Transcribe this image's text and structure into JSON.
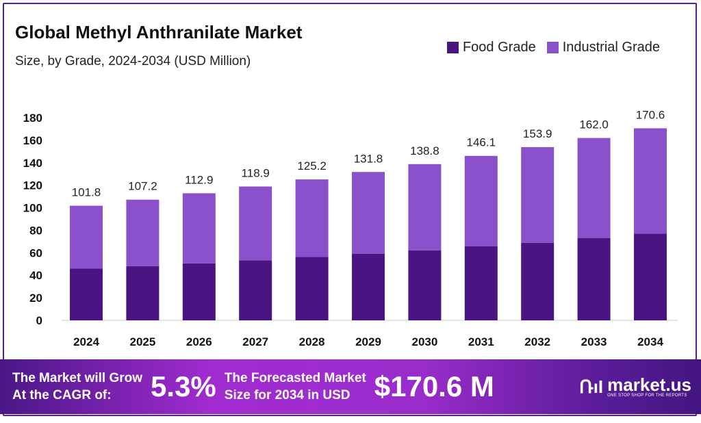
{
  "header": {
    "title": "Global Methyl Anthranilate Market",
    "subtitle": "Size, by Grade, 2024-2034 (USD Million)"
  },
  "chart_data": {
    "type": "bar",
    "stacked": true,
    "categories": [
      "2024",
      "2025",
      "2026",
      "2027",
      "2028",
      "2029",
      "2030",
      "2031",
      "2032",
      "2033",
      "2034"
    ],
    "series": [
      {
        "name": "Food Grade",
        "color": "#4a1583",
        "values": [
          45.9,
          48.2,
          50.6,
          53.3,
          56.3,
          59.2,
          62.2,
          65.9,
          68.9,
          73.2,
          76.9
        ]
      },
      {
        "name": "Industrial Grade",
        "color": "#8b50cc",
        "values": [
          55.9,
          59.0,
          62.3,
          65.6,
          68.9,
          72.6,
          76.6,
          80.2,
          85.0,
          88.8,
          93.7
        ]
      }
    ],
    "totals": [
      "101.8",
      "107.2",
      "112.9",
      "118.9",
      "125.2",
      "131.8",
      "138.8",
      "146.1",
      "153.9",
      "162.0",
      "170.6"
    ],
    "yticks": [
      "0",
      "20",
      "40",
      "60",
      "80",
      "100",
      "120",
      "140",
      "160",
      "180"
    ],
    "ylim": [
      0,
      180
    ],
    "grid": false,
    "legend": "top-right"
  },
  "banner": {
    "cagr_label_1": "The Market will Grow",
    "cagr_label_2": "At the CAGR of:",
    "cagr_value": "5.3%",
    "forecast_label_1": "The Forecasted Market",
    "forecast_label_2": "Size for 2034 in USD",
    "forecast_value": "$170.6 M",
    "logo_text": "market.us",
    "logo_tagline": "ONE STOP SHOP FOR THE REPORTS"
  }
}
